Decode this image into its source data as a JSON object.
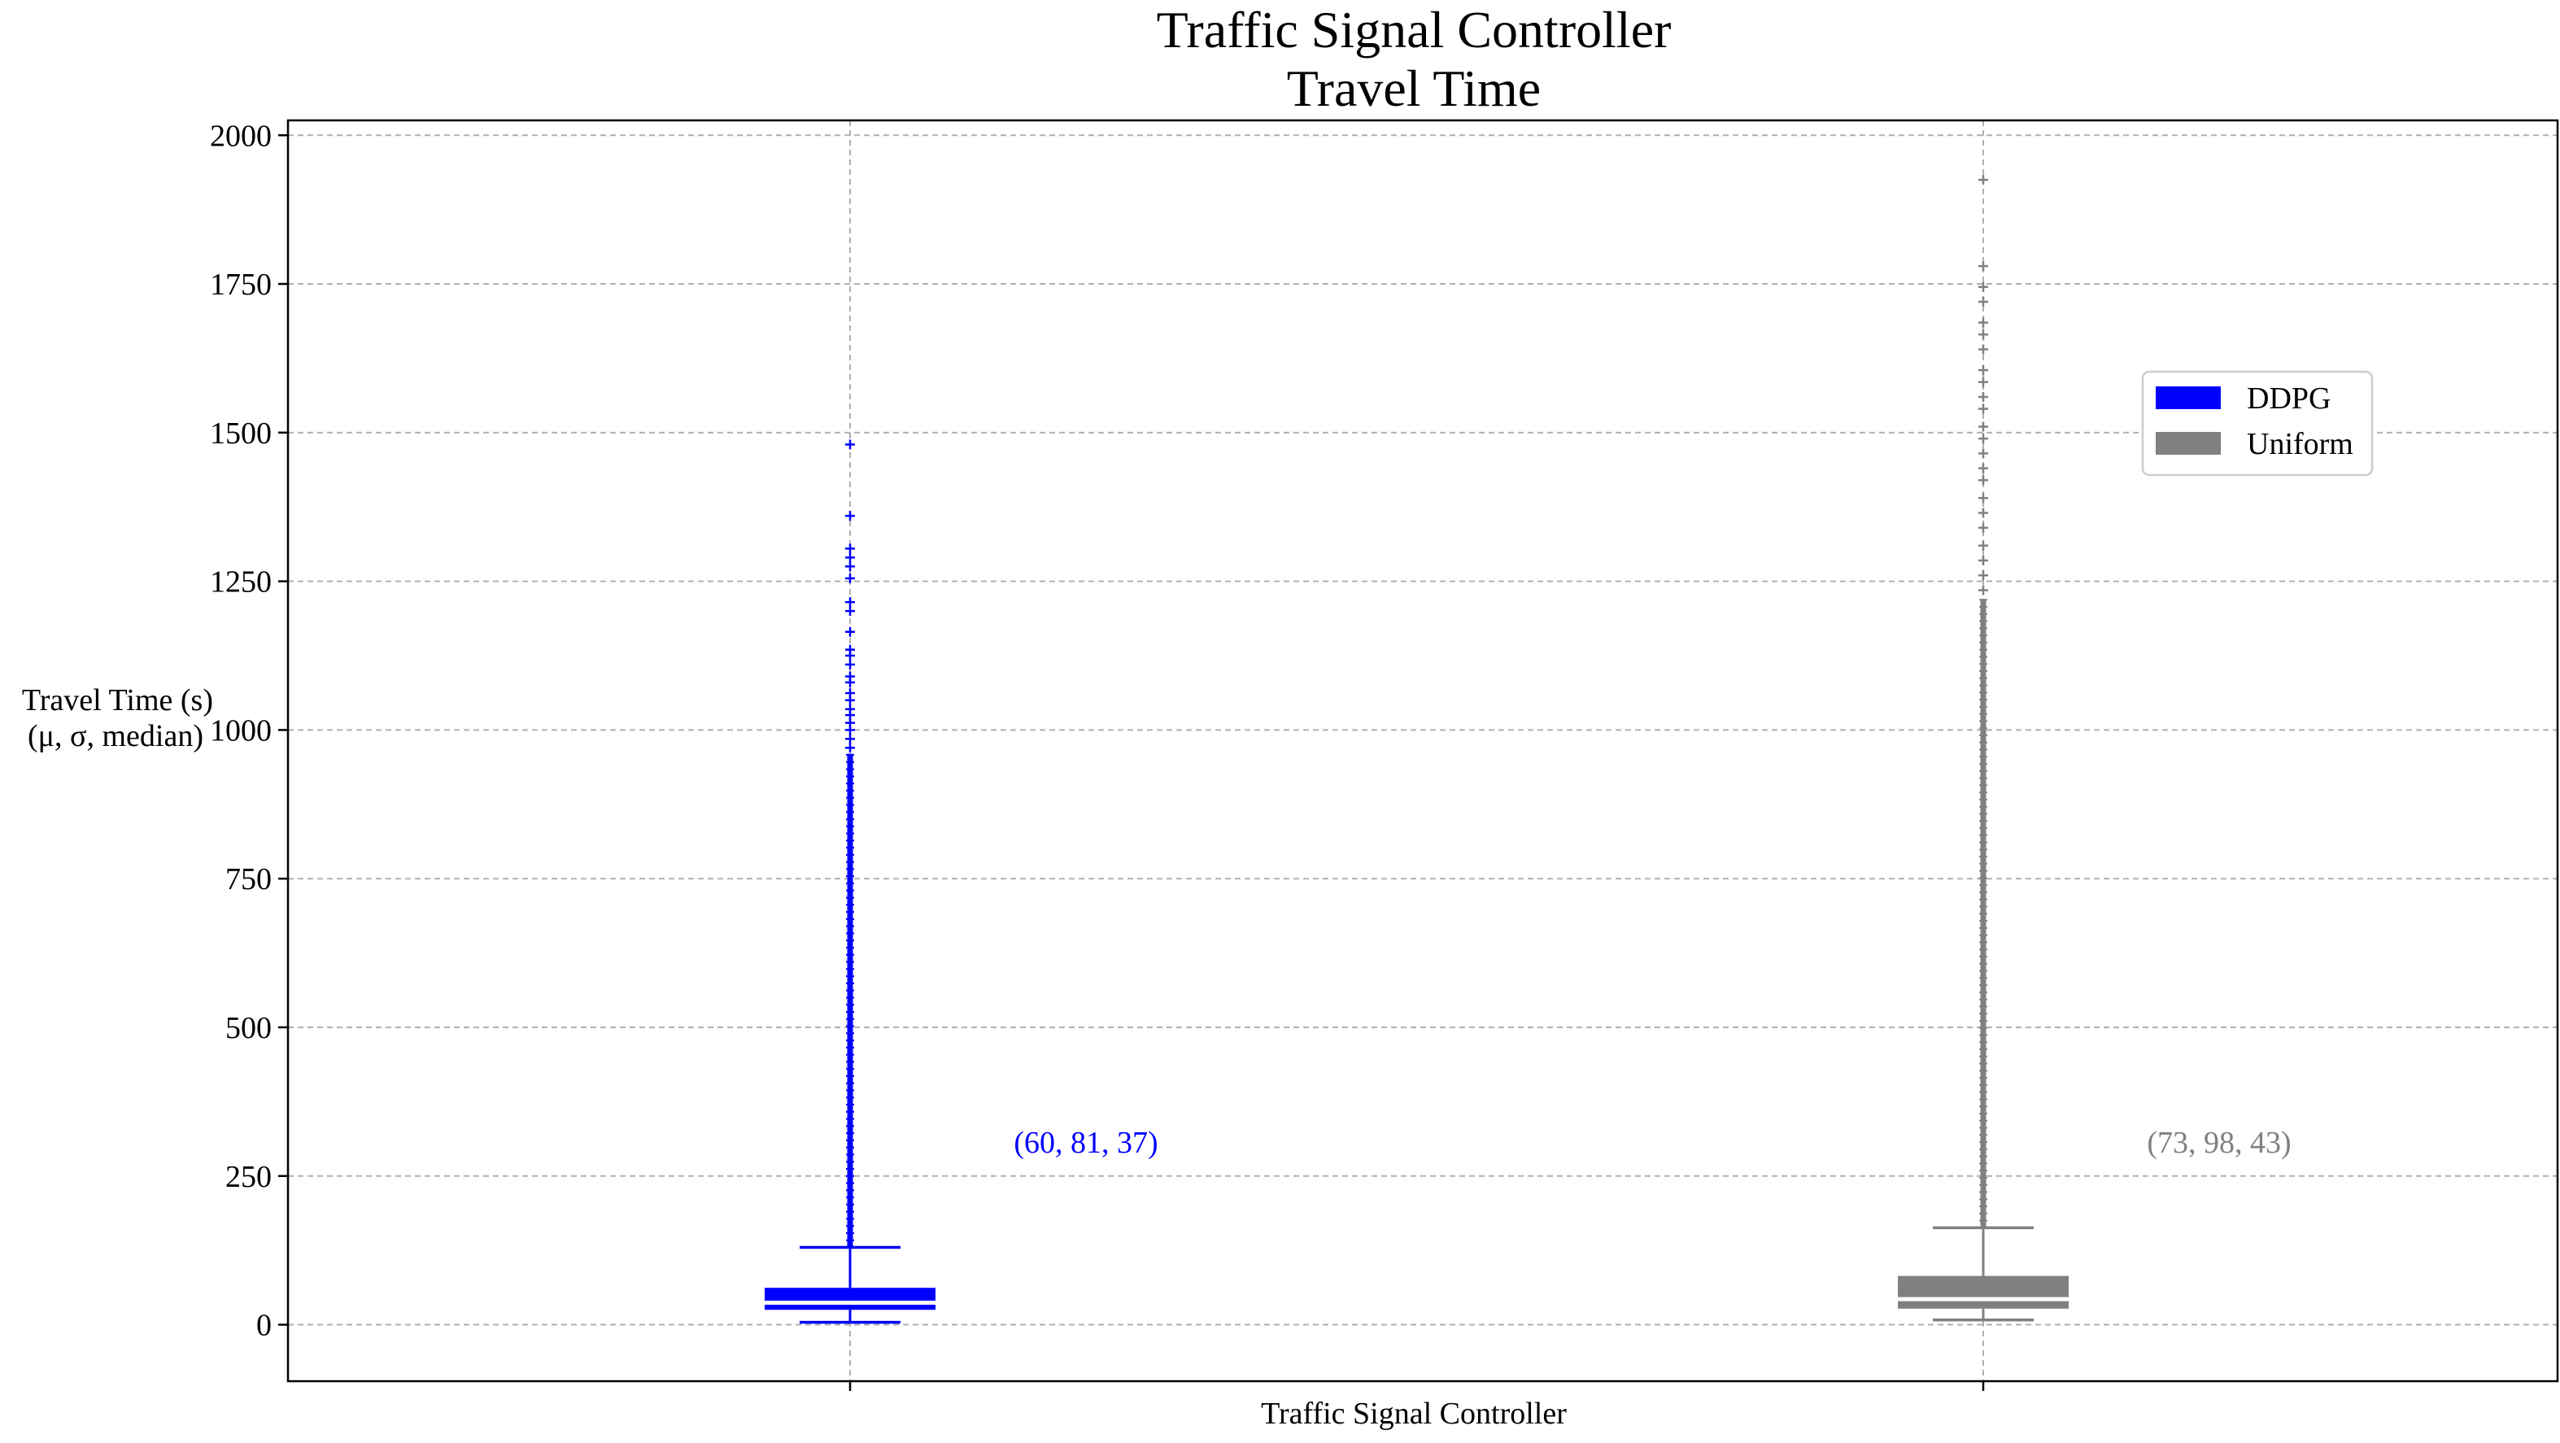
{
  "chart_data": {
    "type": "box",
    "title_line1": "Traffic Signal Controller",
    "title_line2": "Travel Time",
    "xlabel": "Traffic Signal Controller",
    "ylabel_line1": "Travel Time (s)",
    "ylabel_line2": "(μ, σ, median)",
    "ylim": [
      -95,
      2025
    ],
    "yticks": [
      0,
      250,
      500,
      750,
      1000,
      1250,
      1500,
      1750,
      2000
    ],
    "grid": true,
    "legend_position": "upper-right",
    "series": [
      {
        "name": "DDPG",
        "color": "#0000ff",
        "x_position": 1,
        "whisker_low": 4,
        "q1": 25,
        "median": 37,
        "q3": 62,
        "whisker_high": 130,
        "stats_label": "(60, 81, 37)",
        "outliers_dense_range": [
          130,
          960
        ],
        "outliers_sparse": [
          970,
          985,
          1000,
          1012,
          1025,
          1035,
          1050,
          1062,
          1080,
          1090,
          1110,
          1125,
          1135,
          1165,
          1200,
          1215,
          1255,
          1275,
          1290,
          1305,
          1360,
          1480
        ]
      },
      {
        "name": "Uniform",
        "color": "#808080",
        "x_position": 2,
        "whisker_low": 8,
        "q1": 27,
        "median": 43,
        "q3": 82,
        "whisker_high": 163,
        "stats_label": "(73, 98, 43)",
        "outliers_dense_range": [
          163,
          1220
        ],
        "outliers_sparse": [
          1235,
          1260,
          1285,
          1310,
          1340,
          1365,
          1390,
          1420,
          1440,
          1465,
          1490,
          1510,
          1540,
          1560,
          1585,
          1605,
          1640,
          1665,
          1685,
          1720,
          1745,
          1780,
          1925
        ]
      }
    ]
  }
}
